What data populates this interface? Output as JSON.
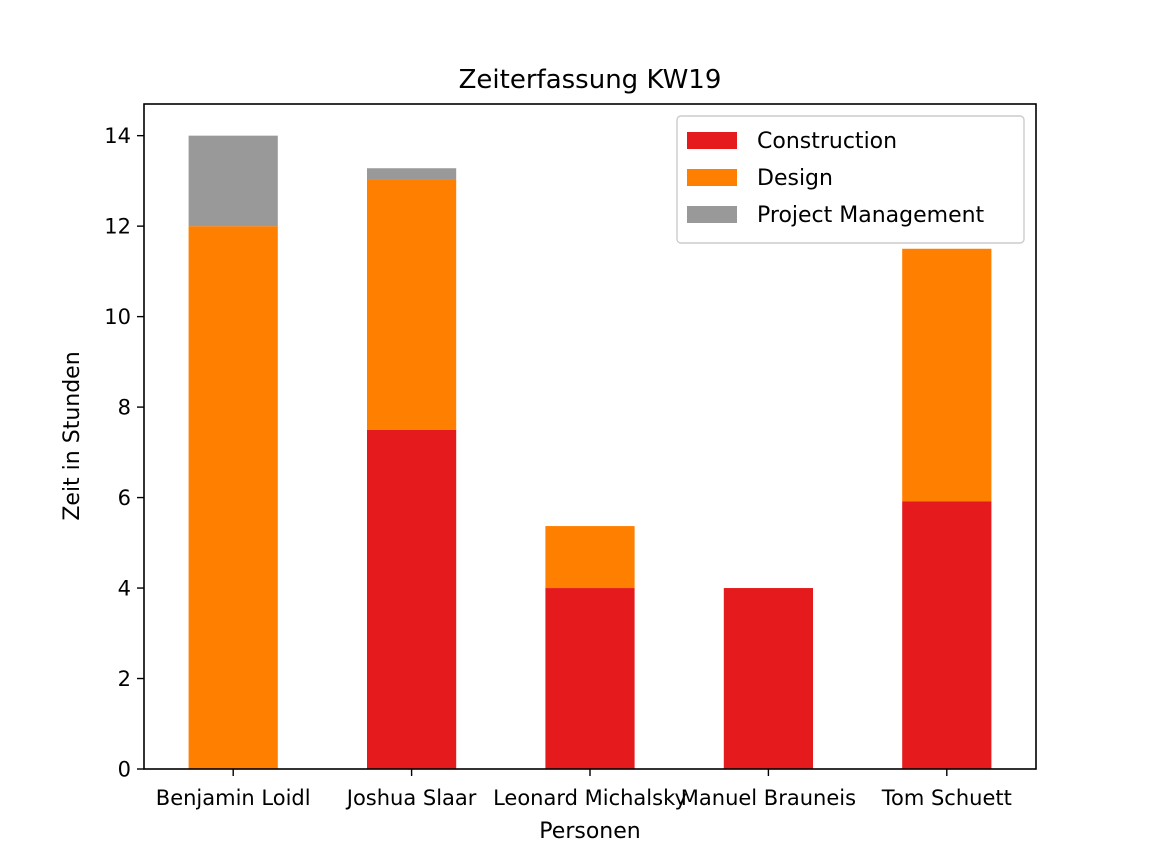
{
  "chart_data": {
    "type": "bar",
    "stacked": true,
    "title": "Zeiterfassung KW19",
    "xlabel": "Personen",
    "ylabel": "Zeit in Stunden",
    "categories": [
      "Benjamin Loidl",
      "Joshua Slaar",
      "Leonard Michalsky",
      "Manuel Brauneis",
      "Tom Schuett"
    ],
    "series": [
      {
        "name": "Construction",
        "color": "#e41a1c",
        "values": [
          0,
          7.5,
          4,
          4,
          5.92
        ]
      },
      {
        "name": "Design",
        "color": "#ff7f00",
        "values": [
          12,
          5.53,
          1.37,
          0,
          5.58
        ]
      },
      {
        "name": "Project Management",
        "color": "#999999",
        "values": [
          2,
          0.25,
          0,
          0,
          0
        ]
      }
    ],
    "ylim": [
      0,
      14.7
    ],
    "yticks": [
      0,
      2,
      4,
      6,
      8,
      10,
      12,
      14
    ],
    "grid": false,
    "legend_position": "top-right"
  }
}
